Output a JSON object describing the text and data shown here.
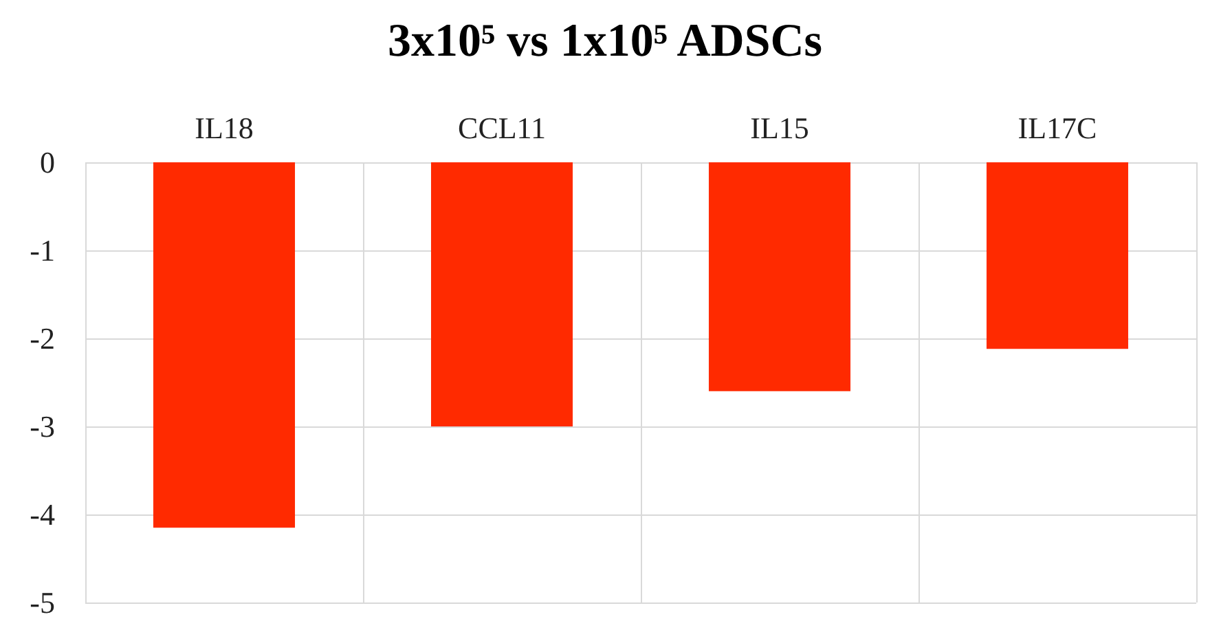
{
  "chart_data": {
    "type": "bar",
    "title": "3x10⁵ vs 1x10⁵ ADSCs",
    "categories": [
      "IL18",
      "CCL11",
      "IL15",
      "IL17C"
    ],
    "values": [
      -4.15,
      -3.0,
      -2.6,
      -2.12
    ],
    "color": "#ff2a00",
    "ylim": [
      -5,
      0
    ],
    "yticks": [
      -5,
      -4,
      -3,
      -2,
      -1,
      0
    ],
    "grid": true
  }
}
